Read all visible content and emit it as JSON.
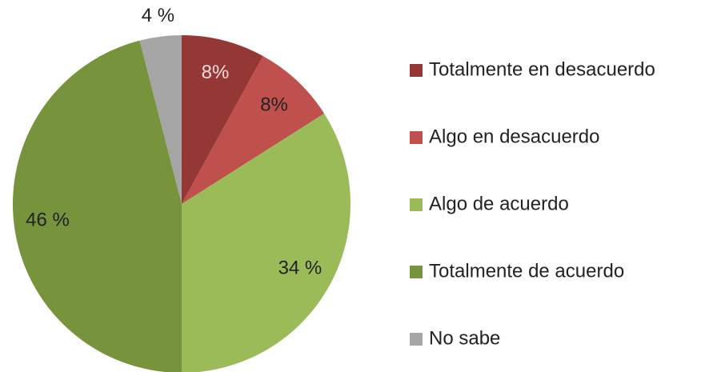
{
  "chart_data": {
    "type": "pie",
    "categories": [
      "Totalmente en desacuerdo",
      "Algo en desacuerdo",
      "Algo de acuerdo",
      "Totalmente de acuerdo",
      "No sabe"
    ],
    "values": [
      8,
      8,
      34,
      46,
      4
    ],
    "value_labels": [
      "8%",
      "8%",
      "34 %",
      "46 %",
      "4 %"
    ],
    "colors": [
      "#953735",
      "#c0504d",
      "#9bbb59",
      "#77933c",
      "#a5a5a5"
    ],
    "legend": "right"
  }
}
